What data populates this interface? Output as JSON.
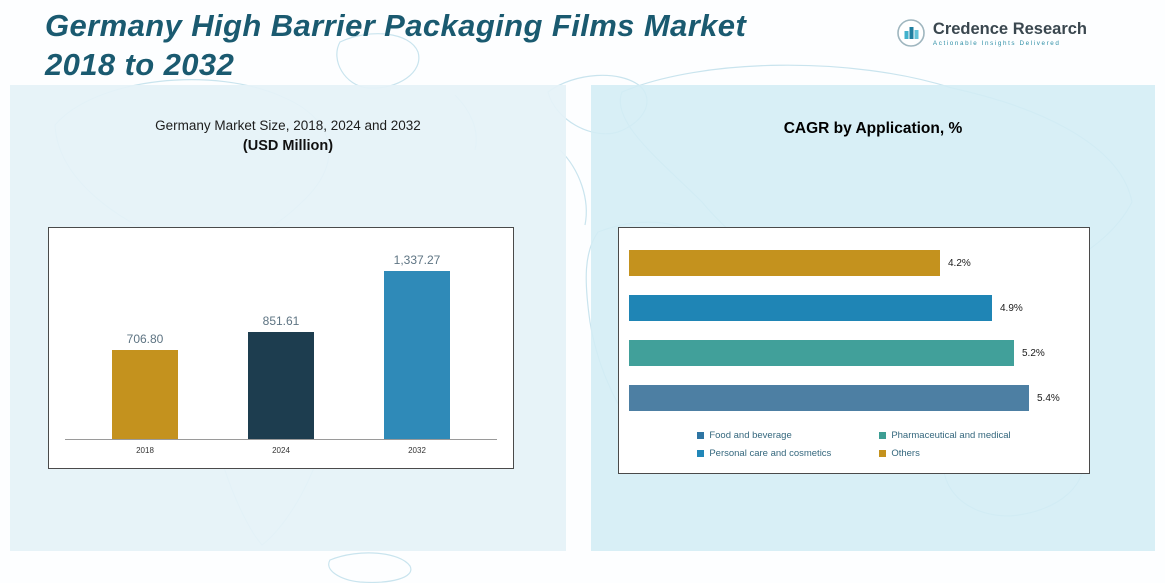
{
  "header": {
    "title_line1": "Germany High Barrier Packaging Films Market",
    "title_line2": "2018 to 2032",
    "logo": {
      "name": "Credence Research",
      "tagline": "Actionable Insights Delivered"
    }
  },
  "chart_data": [
    {
      "type": "bar",
      "orientation": "vertical",
      "title": "Germany Market Size, 2018, 2024 and 2032",
      "subtitle": "(USD Million)",
      "categories": [
        "2018",
        "2024",
        "2032"
      ],
      "values": [
        706.8,
        851.61,
        1337.27
      ],
      "value_labels": [
        "706.80",
        "851.61",
        "1,337.27"
      ],
      "colors": [
        "#c4921e",
        "#1d3d4f",
        "#2f8ab8"
      ],
      "xlabel": "",
      "ylabel": "USD Million",
      "ylim": [
        0,
        1400
      ],
      "grid": false,
      "legend_position": "none"
    },
    {
      "type": "bar",
      "orientation": "horizontal",
      "title": "CAGR by Application, %",
      "categories": [
        "Others",
        "Personal care and cosmetics",
        "Pharmaceutical and medical",
        "Food and beverage"
      ],
      "values": [
        4.2,
        4.9,
        5.2,
        5.4
      ],
      "value_labels": [
        "4.2%",
        "4.9%",
        "5.2%",
        "5.4%"
      ],
      "colors": [
        "#c4921e",
        "#1f85b5",
        "#41a09a",
        "#4d7fa3"
      ],
      "xlabel": "CAGR %",
      "ylabel": "",
      "xlim": [
        0,
        5.6
      ],
      "grid": false,
      "legend_position": "bottom",
      "legend": [
        {
          "label": "Food and beverage",
          "color": "#2e75a3"
        },
        {
          "label": "Pharmaceutical and medical",
          "color": "#3d9e94"
        },
        {
          "label": "Personal care and cosmetics",
          "color": "#2187b8"
        },
        {
          "label": "Others",
          "color": "#c4921e"
        }
      ]
    }
  ]
}
